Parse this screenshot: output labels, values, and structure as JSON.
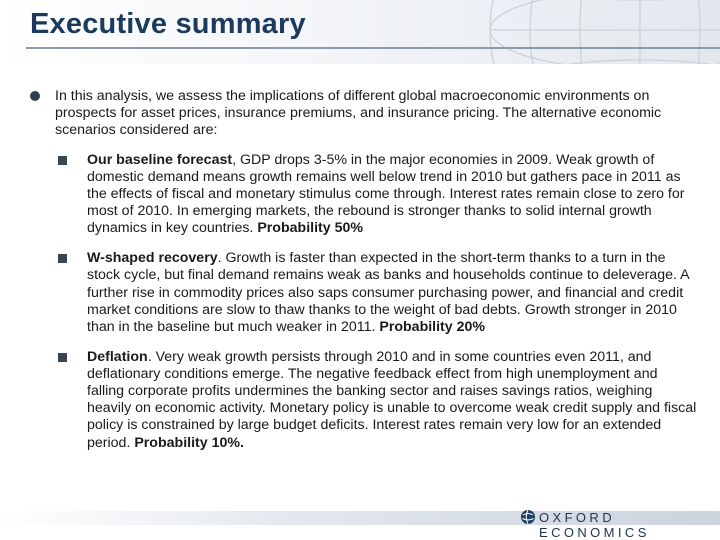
{
  "header": {
    "title": "Executive summary"
  },
  "intro": {
    "text": "In this analysis, we assess the implications of different global macroeconomic environments on prospects for asset prices, insurance premiums, and insurance pricing. The alternative economic scenarios considered are:"
  },
  "scenarios": [
    {
      "heading": "Our baseline forecast",
      "body": ", GDP drops 3-5% in the major economies in 2009. Weak growth of domestic demand means growth remains well below trend in 2010 but gathers pace in 2011 as the effects of fiscal and monetary stimulus come through. Interest rates remain close to zero for most of 2010. In emerging markets, the rebound is stronger thanks to solid internal growth dynamics in key countries. ",
      "probability": "Probability 50%"
    },
    {
      "heading": "W-shaped recovery",
      "body": ". Growth is faster than expected in the short-term thanks to a turn in the stock cycle, but final demand remains weak as banks and households continue to deleverage. A further rise in commodity prices also saps consumer purchasing power, and financial and credit market conditions are slow to thaw thanks to the weight of bad debts. Growth stronger in 2010 than in the baseline but much weaker in 2011. ",
      "probability": "Probability 20%"
    },
    {
      "heading": "Deflation",
      "body": ". Very weak growth persists through 2010 and in some countries even 2011, and deflationary conditions emerge. The negative feedback effect from high unemployment and falling corporate profits undermines the banking sector and raises savings ratios, weighing heavily on economic activity. Monetary policy is unable to overcome weak credit supply and fiscal policy is constrained by large budget deficits. Interest rates remain very low for an extended period. ",
      "probability": "Probability 10%."
    }
  ],
  "footer": {
    "logo_text": "OXFORD ECONOMICS"
  },
  "colors": {
    "title": "#1c3a5e",
    "bullet": "#2f3d4c",
    "rule": "#8c9aaa"
  },
  "icons": {
    "logo": "globe-logo-icon",
    "header_decoration": "globe-graphic-icon"
  }
}
